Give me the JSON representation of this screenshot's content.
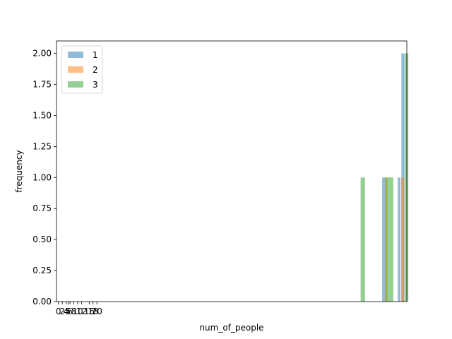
{
  "chart_data": {
    "type": "bar",
    "title": "",
    "xlabel": "num_of_people",
    "ylabel": "frequency",
    "ylim": [
      0,
      2.1
    ],
    "yticks": [
      "0.00",
      "0.25",
      "0.50",
      "0.75",
      "1.00",
      "1.25",
      "1.50",
      "1.75",
      "2.00"
    ],
    "xticks": [
      "0",
      "2",
      "4",
      "5",
      "6",
      "8",
      "10",
      "12",
      "16",
      "18",
      "20"
    ],
    "xtick_values": [
      0,
      2,
      4,
      5,
      6,
      8,
      10,
      12,
      16,
      18,
      20
    ],
    "xlim": [
      -1,
      181
    ],
    "grid": false,
    "legend": {
      "position": "top-left"
    },
    "series": [
      {
        "name": "1",
        "color": "#1f77b4",
        "bars": [
          {
            "x": 168.2,
            "width": 1.4,
            "value": 1
          },
          {
            "x": 176.3,
            "width": 1.4,
            "value": 1
          },
          {
            "x": 178.2,
            "width": 1.6,
            "value": 2
          }
        ]
      },
      {
        "name": "2",
        "color": "#ff7f0e",
        "bars": [
          {
            "x": 169.6,
            "width": 1.3,
            "value": 1
          },
          {
            "x": 178.1,
            "width": 1.5,
            "value": 1
          }
        ]
      },
      {
        "name": "3",
        "color": "#2ca02c",
        "bars": [
          {
            "x": 157.0,
            "width": 2.3,
            "value": 1
          },
          {
            "x": 169.7,
            "width": 4.3,
            "value": 1
          },
          {
            "x": 180.0,
            "width": 1.8,
            "value": 2
          }
        ]
      }
    ]
  }
}
